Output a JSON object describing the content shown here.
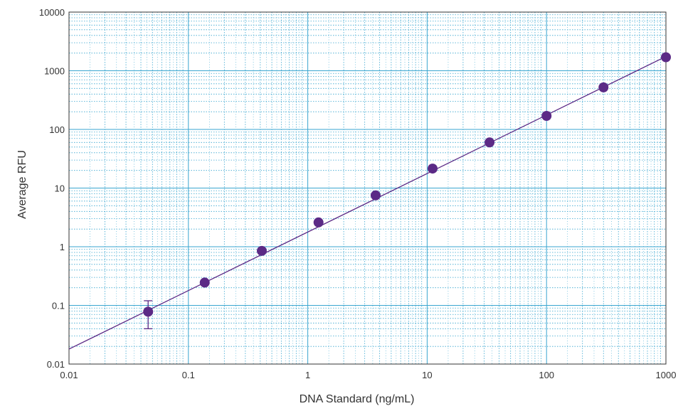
{
  "chart_data": {
    "type": "scatter",
    "xlabel": "DNA Standard (ng/mL)",
    "ylabel": "Average RFU",
    "x_scale": "log",
    "y_scale": "log",
    "xlim": [
      0.01,
      1000
    ],
    "ylim": [
      0.01,
      10000
    ],
    "x_ticks": [
      "0.01",
      "0.1",
      "1",
      "10",
      "100",
      "1000"
    ],
    "y_ticks": [
      "0.01",
      "0.1",
      "1",
      "10",
      "100",
      "1000",
      "10000"
    ],
    "grid": true,
    "legend": "none",
    "colors": {
      "marker": "#5b2a86",
      "fit_line": "#5b2a86",
      "grid": "#3aa6d0",
      "axis": "#333333"
    },
    "points": [
      {
        "x": 0.046,
        "y": 0.078,
        "y_low": 0.04,
        "y_high": 0.12
      },
      {
        "x": 0.137,
        "y": 0.245
      },
      {
        "x": 0.412,
        "y": 0.85
      },
      {
        "x": 1.23,
        "y": 2.6
      },
      {
        "x": 3.7,
        "y": 7.5
      },
      {
        "x": 11.1,
        "y": 21.5
      },
      {
        "x": 33.3,
        "y": 60
      },
      {
        "x": 100,
        "y": 170
      },
      {
        "x": 300,
        "y": 520
      },
      {
        "x": 1000,
        "y": 1700
      }
    ],
    "fit_line": {
      "x": [
        0.01,
        1000
      ],
      "y": [
        0.018,
        1750
      ]
    }
  }
}
